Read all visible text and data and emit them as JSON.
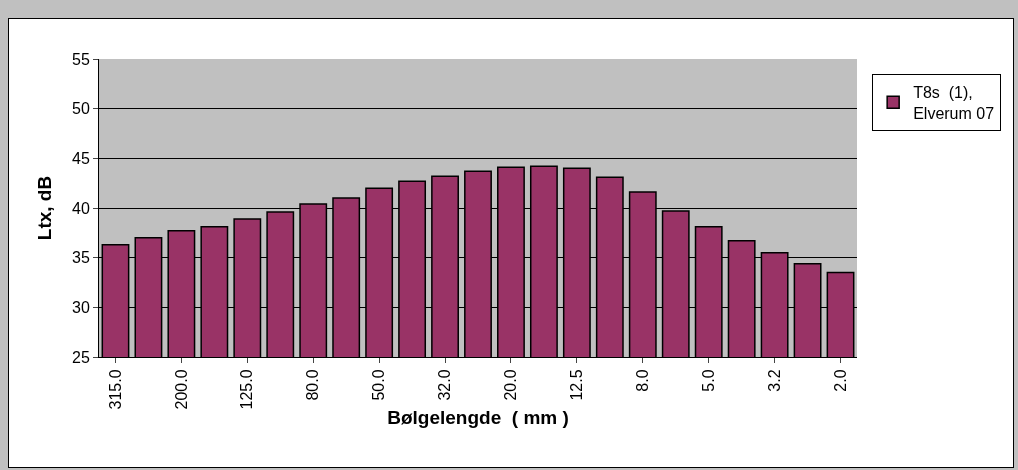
{
  "chart_data": {
    "type": "bar",
    "xlabel": "Bølgelengde  ( mm )",
    "ylabel": "Ltx, dB",
    "categories": [
      "315.0",
      null,
      "200.0",
      null,
      "125.0",
      null,
      "80.0",
      null,
      "50.0",
      null,
      "32.0",
      null,
      "20.0",
      null,
      "12.5",
      null,
      "8.0",
      null,
      "5.0",
      null,
      "3.2",
      null,
      "2.0"
    ],
    "series": [
      {
        "name": "T8s  (1), Elverum 07",
        "color": "#993366",
        "values": [
          36.3,
          37.0,
          37.7,
          38.1,
          38.9,
          39.6,
          40.4,
          41.0,
          42.0,
          42.7,
          43.2,
          43.7,
          44.1,
          44.2,
          44.0,
          43.1,
          41.6,
          39.7,
          38.1,
          36.7,
          35.5,
          34.4,
          33.5
        ]
      }
    ],
    "ylim": [
      25,
      55
    ],
    "yticks": [
      25,
      30,
      35,
      40,
      45,
      50,
      55
    ],
    "grid": "y",
    "legend": "right"
  }
}
